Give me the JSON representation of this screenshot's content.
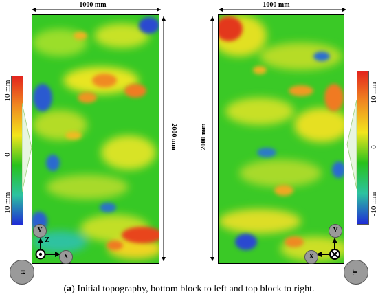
{
  "figure": {
    "left_panel": {
      "width_label": "1000 mm",
      "height_label": "2000 mm",
      "axis_y": "Y",
      "axis_z": "Z",
      "axis_x": "X",
      "block_badge": "B"
    },
    "right_panel": {
      "width_label": "1000 mm",
      "height_label": "2000 mm",
      "axis_y": "Y",
      "axis_x": "X",
      "block_badge": "T"
    },
    "colorbar_left": {
      "ticks": [
        "10 mm",
        "0",
        "-10 mm"
      ]
    },
    "colorbar_right": {
      "ticks": [
        "10 mm",
        "0",
        "-10 mm"
      ]
    },
    "colors": {
      "high": "#e3251e",
      "mid_high": "#f2e51c",
      "zero": "#28c21c",
      "low": "#1f2bd6"
    }
  },
  "caption": {
    "panel_tag": "a",
    "text": "Initial topography, bottom block to left and top block to right."
  }
}
